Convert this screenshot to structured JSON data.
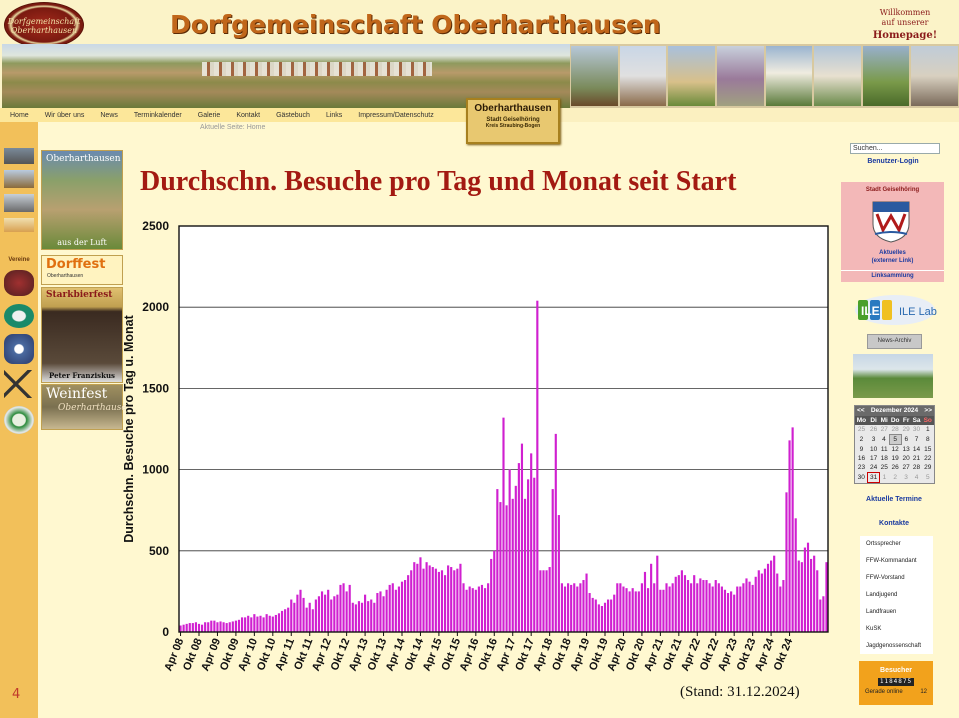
{
  "header": {
    "logo_text": "Dorfgemeinschaft Oberharthausen",
    "site_title": "Dorfgemeinschaft Oberharthausen",
    "welcome_line1": "Willkommen",
    "welcome_line2": "auf unserer",
    "welcome_line3": "Homepage!"
  },
  "nav": {
    "items": [
      "Home",
      "Wir über uns",
      "News",
      "Terminkalender",
      "Galerie",
      "Kontakt",
      "Gästebuch",
      "Links",
      "Impressum/Datenschutz"
    ]
  },
  "breadcrumb": "Aktuelle Seite: Home",
  "badge": {
    "line1": "Oberharthausen",
    "line2": "Stadt Geiselhöring",
    "line3": "Kreis Straubing-Bogen"
  },
  "left_col": {
    "vereine_label": "Vereine"
  },
  "banners": [
    {
      "top": "Oberharthausen",
      "bottom": "aus der Luft"
    },
    {
      "top": "Dorffest",
      "bottom": "Oberharthausen"
    },
    {
      "top": "Starkbierfest",
      "bottom": "Peter Franziskus"
    },
    {
      "top": "Weinfest",
      "bottom": "Oberharthausen"
    }
  ],
  "chart_data": {
    "type": "bar",
    "title": "Durchschn. Besuche pro Tag und Monat seit Start",
    "ylabel": "Durchschn. Besuche pro Tag u. Monat",
    "xlabel": "",
    "ylim": [
      0,
      2500
    ],
    "yticks": [
      0,
      500,
      1000,
      1500,
      2000,
      2500
    ],
    "grid": true,
    "bar_color": "#d020d0",
    "x_tick_labels": [
      "Apr 08",
      "Okt 08",
      "Apr 09",
      "Okt 09",
      "Apr 10",
      "Okt 10",
      "Apr 11",
      "Okt 11",
      "Apr 12",
      "Okt 12",
      "Apr 13",
      "Okt 13",
      "Apr 14",
      "Okt 14",
      "Apr 15",
      "Okt 15",
      "Apr 16",
      "Okt 16",
      "Apr 17",
      "Okt 17",
      "Apr 18",
      "Okt 18",
      "Apr 19",
      "Okt 19",
      "Apr 20",
      "Okt 20",
      "Apr 21",
      "Okt 21",
      "Apr 22",
      "Okt 22",
      "Apr 23",
      "Okt 23",
      "Apr 24",
      "Okt 24"
    ],
    "start_month": "Apr 08",
    "values": [
      40,
      45,
      50,
      55,
      55,
      60,
      50,
      45,
      60,
      60,
      70,
      70,
      60,
      65,
      60,
      55,
      60,
      65,
      70,
      75,
      90,
      90,
      100,
      90,
      110,
      95,
      100,
      90,
      110,
      100,
      95,
      105,
      115,
      130,
      140,
      150,
      200,
      180,
      230,
      260,
      210,
      150,
      180,
      140,
      200,
      220,
      250,
      230,
      260,
      200,
      220,
      230,
      290,
      300,
      250,
      290,
      180,
      170,
      190,
      180,
      230,
      190,
      200,
      180,
      240,
      250,
      220,
      260,
      290,
      300,
      260,
      280,
      310,
      320,
      350,
      380,
      430,
      420,
      460,
      390,
      430,
      410,
      400,
      390,
      370,
      380,
      350,
      410,
      400,
      380,
      390,
      420,
      300,
      260,
      280,
      270,
      260,
      280,
      290,
      270,
      300,
      450,
      500,
      880,
      800,
      1320,
      780,
      1000,
      820,
      900,
      1040,
      1160,
      820,
      940,
      1100,
      950,
      2040,
      380,
      380,
      380,
      400,
      880,
      1220,
      720,
      300,
      280,
      300,
      290,
      300,
      280,
      300,
      320,
      360,
      240,
      210,
      200,
      170,
      160,
      180,
      200,
      200,
      230,
      300,
      300,
      280,
      270,
      250,
      270,
      250,
      250,
      300,
      370,
      270,
      420,
      300,
      470,
      260,
      260,
      300,
      280,
      300,
      340,
      350,
      380,
      350,
      320,
      300,
      350,
      300,
      330,
      320,
      320,
      300,
      280,
      320,
      300,
      280,
      260,
      240,
      250,
      230,
      280,
      280,
      300,
      330,
      310,
      290,
      340,
      380,
      360,
      390,
      420,
      440,
      470,
      360,
      280,
      320,
      860,
      1180,
      1260,
      700,
      440,
      430,
      520,
      550,
      450,
      470,
      380,
      200,
      220,
      430
    ]
  },
  "stand_text": "(Stand: 31.12.2024)",
  "page_number": "4",
  "sidebar": {
    "search_placeholder": "Suchen...",
    "login": "Benutzer-Login",
    "town": {
      "title": "Stadt Geiselhöring",
      "link1": "Aktuelles",
      "link2": "(externer Link)",
      "link3": "Linksammlung"
    },
    "ile_text": "ILE Laber",
    "news_archiv": "News-Archiv",
    "calendar": {
      "month": "Dezember 2024",
      "prev": "<<",
      "next": ">>",
      "weekdays": [
        "Mo",
        "Di",
        "Mi",
        "Do",
        "Fr",
        "Sa",
        "So"
      ],
      "weeks": [
        [
          "25",
          "26",
          "27",
          "28",
          "29",
          "30",
          "1"
        ],
        [
          "2",
          "3",
          "4",
          "5",
          "6",
          "7",
          "8"
        ],
        [
          "9",
          "10",
          "11",
          "12",
          "13",
          "14",
          "15"
        ],
        [
          "16",
          "17",
          "18",
          "19",
          "20",
          "21",
          "22"
        ],
        [
          "23",
          "24",
          "25",
          "26",
          "27",
          "28",
          "29"
        ],
        [
          "30",
          "31",
          "1",
          "2",
          "3",
          "4",
          "5"
        ]
      ]
    },
    "aktuelle_termine": "Aktuelle Termine",
    "kontakte_title": "Kontakte",
    "kontakte": [
      "Ortssprecher",
      "FFW-Kommandant",
      "FFW-Vorstand",
      "Landjugend",
      "Landfrauen",
      "KuSK",
      "Jagdgenossenschaft"
    ],
    "besucher": {
      "title": "Besucher",
      "count": "1184875",
      "online_label": "Gerade online",
      "online_count": "12"
    }
  }
}
